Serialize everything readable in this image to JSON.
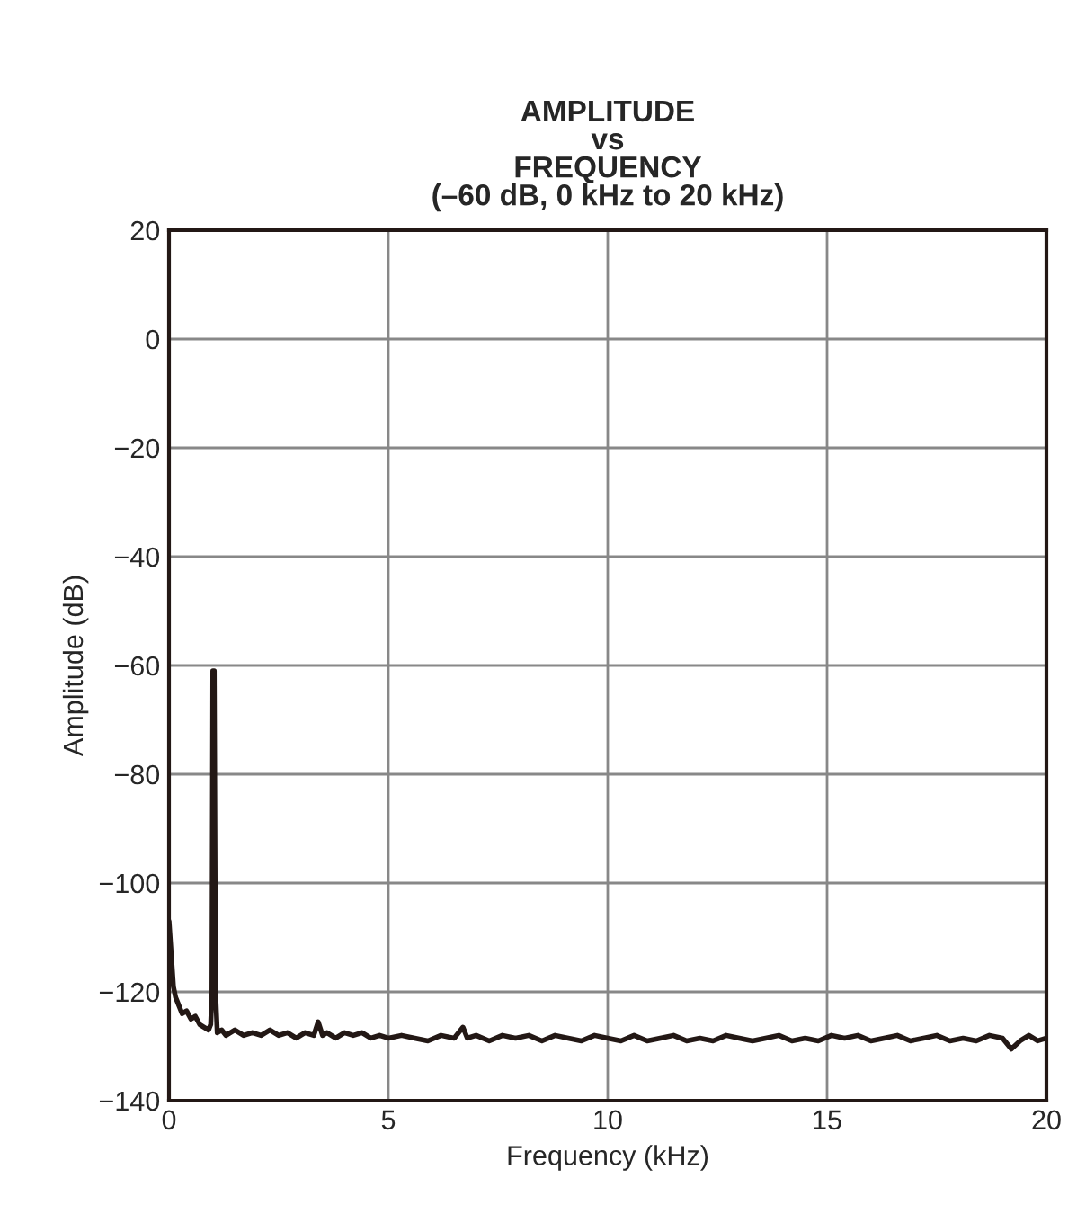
{
  "chart_data": {
    "type": "line",
    "title": "AMPLITUDE\nvs\nFREQUENCY\n(–60 dB, 0 kHz to 20 kHz)",
    "xlabel": "Frequency (kHz)",
    "ylabel": "Amplitude (dB)",
    "x": [
      0,
      0.05,
      0.1,
      0.15,
      0.2,
      0.3,
      0.4,
      0.5,
      0.6,
      0.7,
      0.8,
      0.9,
      0.95,
      0.98,
      1.0,
      1.03,
      1.06,
      1.1,
      1.2,
      1.3,
      1.5,
      1.7,
      1.9,
      2.1,
      2.3,
      2.5,
      2.7,
      2.9,
      3.1,
      3.3,
      3.4,
      3.5,
      3.6,
      3.8,
      4.0,
      4.2,
      4.4,
      4.6,
      4.8,
      5.0,
      5.3,
      5.6,
      5.9,
      6.2,
      6.5,
      6.7,
      6.8,
      7.0,
      7.3,
      7.6,
      7.9,
      8.2,
      8.5,
      8.8,
      9.1,
      9.4,
      9.7,
      10.0,
      10.3,
      10.6,
      10.9,
      11.2,
      11.5,
      11.8,
      12.1,
      12.4,
      12.7,
      13.0,
      13.3,
      13.6,
      13.9,
      14.2,
      14.5,
      14.8,
      15.1,
      15.4,
      15.7,
      16.0,
      16.3,
      16.6,
      16.9,
      17.2,
      17.5,
      17.8,
      18.1,
      18.4,
      18.7,
      19.0,
      19.2,
      19.4,
      19.6,
      19.8,
      20.0
    ],
    "values": [
      -107,
      -113,
      -119,
      -121,
      -122,
      -124,
      -123.5,
      -125,
      -124.5,
      -126,
      -126.5,
      -127,
      -126,
      -120,
      -61,
      -61,
      -120,
      -127.5,
      -127,
      -128,
      -127,
      -128,
      -127.5,
      -128,
      -127,
      -128,
      -127.5,
      -128.5,
      -127.5,
      -128,
      -125.5,
      -128,
      -127.5,
      -128.5,
      -127.5,
      -128,
      -127.5,
      -128.5,
      -128,
      -128.5,
      -128,
      -128.5,
      -129,
      -128,
      -128.5,
      -126.5,
      -128.5,
      -128,
      -129,
      -128,
      -128.5,
      -128,
      -129,
      -128,
      -128.5,
      -129,
      -128,
      -128.5,
      -129,
      -128,
      -129,
      -128.5,
      -128,
      -129,
      -128.5,
      -129,
      -128,
      -128.5,
      -129,
      -128.5,
      -128,
      -129,
      -128.5,
      -129,
      -128,
      -128.5,
      -128,
      -129,
      -128.5,
      -128,
      -129,
      -128.5,
      -128,
      -129,
      -128.5,
      -129,
      -128,
      -128.5,
      -130.5,
      -129,
      -128,
      -129,
      -128.5
    ],
    "color": "#231815",
    "xlim": [
      0,
      20
    ],
    "ylim": [
      -140,
      20
    ],
    "xticks": [
      0,
      5,
      10,
      15,
      20
    ],
    "yticks": [
      {
        "value": 20,
        "label": "20"
      },
      {
        "value": 0,
        "label": "0"
      },
      {
        "value": -20,
        "label": "−20"
      },
      {
        "value": -40,
        "label": "−40"
      },
      {
        "value": -60,
        "label": "−60"
      },
      {
        "value": -80,
        "label": "−80"
      },
      {
        "value": -100,
        "label": "−100"
      },
      {
        "value": -120,
        "label": "−120"
      },
      {
        "value": -140,
        "label": "−140"
      }
    ],
    "grid": true
  }
}
